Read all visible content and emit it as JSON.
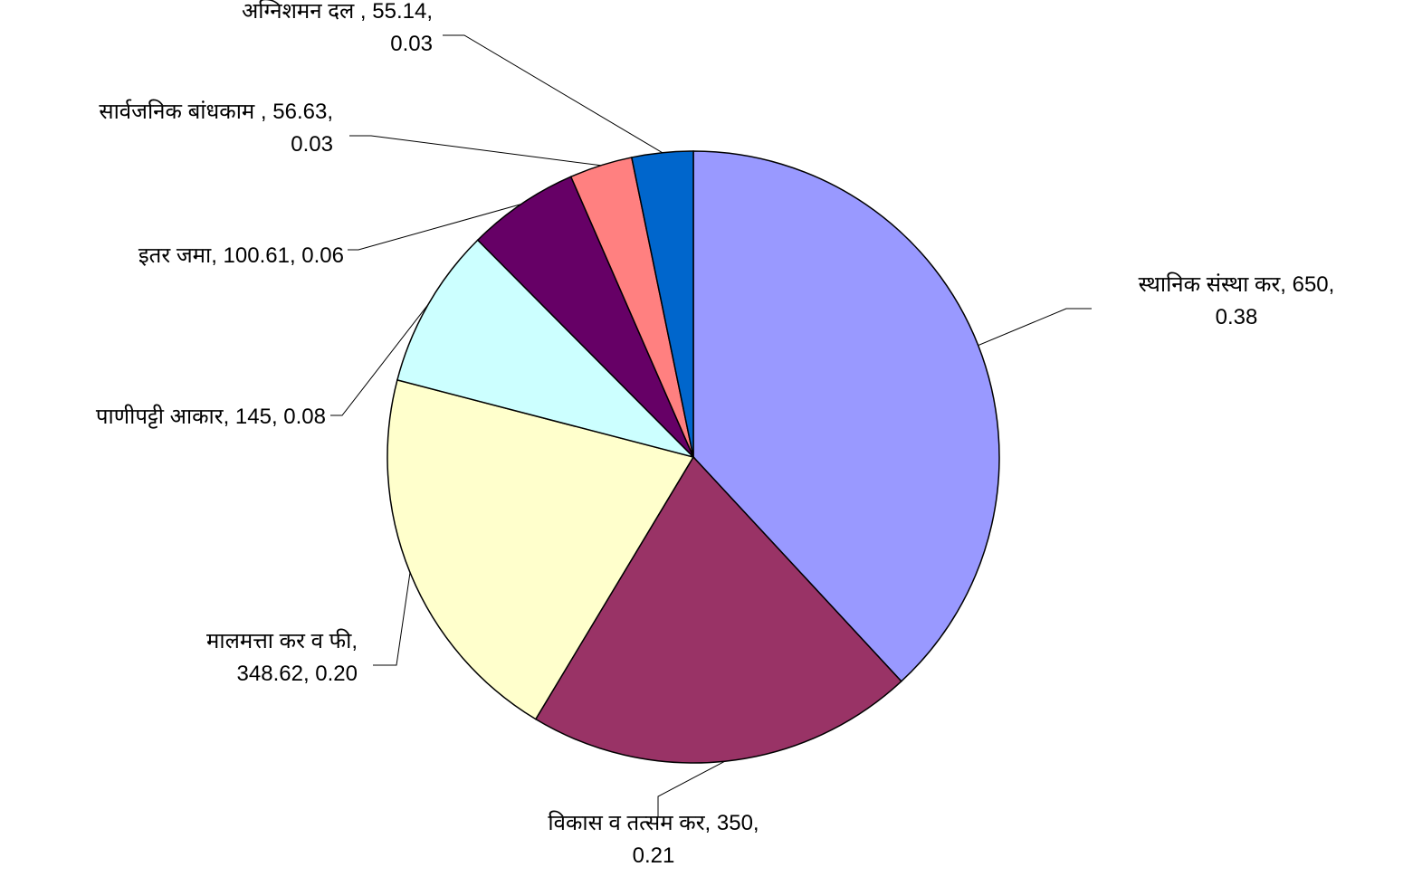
{
  "chart_data": {
    "type": "pie",
    "title": "",
    "start_angle_deg": 0,
    "direction": "clockwise",
    "border_color": "#000000",
    "slices": [
      {
        "label": "स्थानिक संस्था कर",
        "value": 650,
        "fraction": "0.38",
        "label_lines": [
          "स्थानिक संस्था कर, 650,",
          "0.38"
        ],
        "color": "#9999FF"
      },
      {
        "label": "विकास व तत्सम कर",
        "value": 350,
        "fraction": "0.21",
        "label_lines": [
          "विकास व तत्सम कर, 350,",
          "0.21"
        ],
        "color": "#993366"
      },
      {
        "label": "मालमत्ता कर व फी",
        "value": 348.62,
        "fraction": "0.20",
        "label_lines": [
          "मालमत्ता कर व फी,",
          "348.62, 0.20"
        ],
        "color": "#FFFFCC"
      },
      {
        "label": "पाणीपट्टी आकार",
        "value": 145,
        "fraction": "0.08",
        "label_lines": [
          "पाणीपट्टी आकार, 145, 0.08"
        ],
        "color": "#CCFFFF"
      },
      {
        "label": "इतर जमा",
        "value": 100.61,
        "fraction": "0.06",
        "label_lines": [
          "इतर जमा, 100.61, 0.06"
        ],
        "color": "#660066"
      },
      {
        "label": "सार्वजनिक बांधकाम",
        "value": 56.63,
        "fraction": "0.03",
        "label_lines": [
          "सार्वजनिक बांधकाम , 56.63,",
          "0.03"
        ],
        "color": "#FF8080"
      },
      {
        "label": "अग्निशमन दल",
        "value": 55.14,
        "fraction": "0.03",
        "label_lines": [
          "अग्निशमन दल , 55.14,",
          "0.03"
        ],
        "color": "#0066CC"
      }
    ]
  }
}
